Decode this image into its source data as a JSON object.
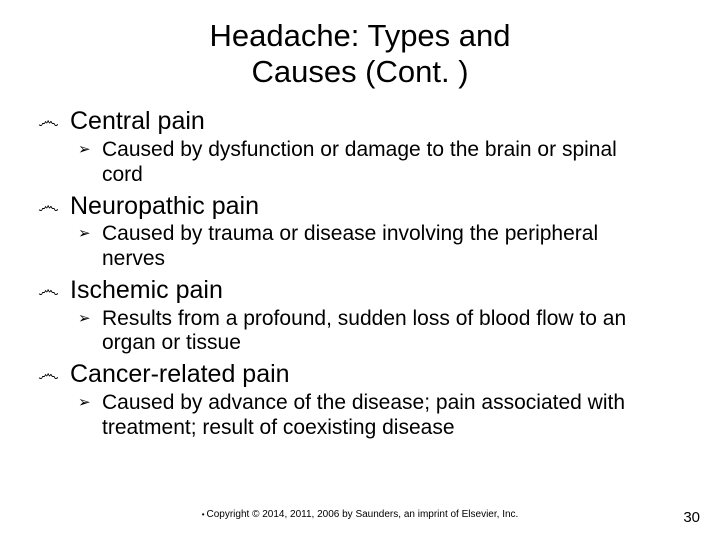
{
  "title_line1": "Headache: Types and",
  "title_line2": "Causes (Cont. )",
  "bullets": {
    "main_glyph": "෴",
    "sub_glyph": "➢"
  },
  "items": [
    {
      "heading": "Central pain",
      "sub": "Caused by dysfunction or damage to the brain or spinal cord"
    },
    {
      "heading": "Neuropathic pain",
      "sub": "Caused by trauma or disease involving the peripheral nerves"
    },
    {
      "heading": "Ischemic pain",
      "sub": "Results from a profound, sudden loss of blood flow to an organ or tissue"
    },
    {
      "heading": "Cancer-related pain",
      "sub": "Caused by advance of the disease; pain associated with treatment; result of coexisting disease"
    }
  ],
  "copyright": "Copyright © 2014, 2011, 2006 by Saunders, an imprint of Elsevier, Inc.",
  "page_number": "30",
  "colors": {
    "background": "#ffffff",
    "text": "#000000"
  }
}
